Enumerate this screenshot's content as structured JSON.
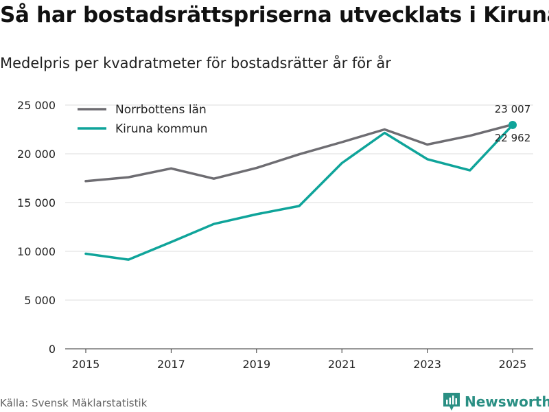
{
  "title": "Så har bostadsrättspriserna utvecklats i Kiruna",
  "subtitle": "Medelpris per kvadratmeter för bostadsrätter år för år",
  "source": "Källa: Svensk Mäklarstatistik",
  "brand": "Newsworthy",
  "colors": {
    "norrbotten": "#6e6d72",
    "kiruna": "#0fa49a",
    "grid": "#dddddd",
    "brand": "#2a8f83"
  },
  "chart_data": {
    "type": "line",
    "title": "Så har bostadsrättspriserna utvecklats i Kiruna",
    "ylabel": "Medelpris per kvadratmeter",
    "xlabel": "",
    "x": [
      2015,
      2016,
      2017,
      2018,
      2019,
      2020,
      2021,
      2022,
      2023,
      2024,
      2025
    ],
    "xticks": [
      2015,
      2017,
      2019,
      2021,
      2023,
      2025
    ],
    "yticks": [
      0,
      5000,
      10000,
      15000,
      20000,
      25000
    ],
    "ytick_labels": [
      "0",
      "5 000",
      "10 000",
      "15 000",
      "20 000",
      "25 000"
    ],
    "ylim": [
      0,
      25000
    ],
    "legend_position": "top-left",
    "series": [
      {
        "name": "Norrbottens län",
        "values": [
          17200,
          17600,
          18500,
          17450,
          18550,
          19950,
          21200,
          22500,
          20950,
          21850,
          23007
        ],
        "end_label": "23 007"
      },
      {
        "name": "Kiruna kommun",
        "values": [
          9750,
          9150,
          10950,
          12800,
          13800,
          14650,
          19050,
          22150,
          19450,
          18300,
          22962
        ],
        "end_label": "22 962"
      }
    ]
  }
}
